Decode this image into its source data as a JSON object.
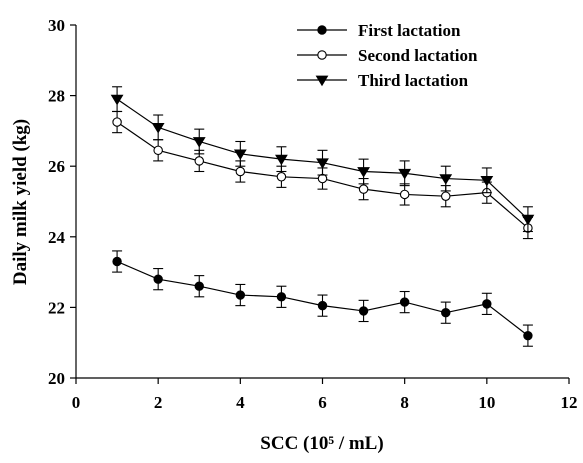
{
  "chart_data": {
    "type": "line",
    "xlabel": "SCC (10⁵ / mL)",
    "ylabel": "Daily milk yield (kg)",
    "xlim": [
      0,
      12
    ],
    "ylim": [
      20,
      30
    ],
    "x_ticks": [
      0,
      2,
      4,
      6,
      8,
      10,
      12
    ],
    "y_ticks": [
      20,
      22,
      24,
      26,
      28,
      30
    ],
    "grid": false,
    "legend_position": "top-right",
    "x": [
      1,
      2,
      3,
      4,
      5,
      6,
      7,
      8,
      9,
      10,
      11
    ],
    "series": [
      {
        "name": "First lactation",
        "marker": "filled-circle",
        "values": [
          23.3,
          22.8,
          22.6,
          22.35,
          22.3,
          22.05,
          21.9,
          22.15,
          21.85,
          22.1,
          21.2
        ],
        "error": [
          0.3,
          0.3,
          0.3,
          0.3,
          0.3,
          0.3,
          0.3,
          0.3,
          0.3,
          0.3,
          0.3
        ]
      },
      {
        "name": "Second lactation",
        "marker": "open-circle",
        "values": [
          27.25,
          26.45,
          26.15,
          25.85,
          25.7,
          25.65,
          25.35,
          25.2,
          25.15,
          25.25,
          24.25
        ],
        "error": [
          0.3,
          0.3,
          0.3,
          0.3,
          0.3,
          0.3,
          0.3,
          0.3,
          0.3,
          0.3,
          0.3
        ]
      },
      {
        "name": "Third lactation",
        "marker": "filled-triangle-down",
        "values": [
          27.9,
          27.1,
          26.7,
          26.35,
          26.2,
          26.1,
          25.85,
          25.8,
          25.65,
          25.6,
          24.5
        ],
        "error": [
          0.35,
          0.35,
          0.35,
          0.35,
          0.35,
          0.35,
          0.35,
          0.35,
          0.35,
          0.35,
          0.35
        ]
      }
    ]
  }
}
